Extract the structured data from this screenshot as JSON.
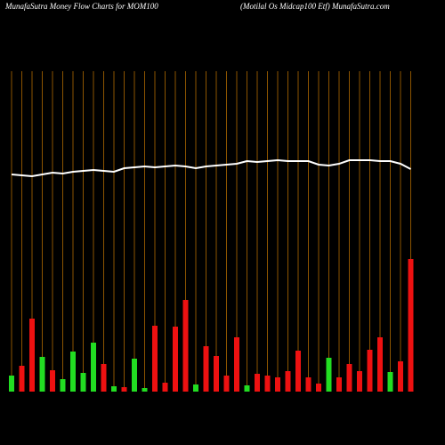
{
  "chart_data": {
    "type": "bar",
    "title": "MunafaSutra  Money Flow  Charts for MOM100",
    "subtitle": "(Motilal Os Midcap100  Etf) MunafaSutra.com",
    "categories": [
      null,
      null,
      null,
      null,
      null,
      null,
      null,
      null,
      null,
      null,
      null,
      null,
      null,
      null,
      null,
      null,
      null,
      null,
      null,
      null,
      null,
      null,
      null,
      null,
      null,
      null,
      null,
      null,
      null,
      null,
      null,
      null,
      null,
      null,
      null,
      null,
      null,
      null,
      null,
      null
    ],
    "bars": {
      "values": [
        18,
        29,
        82,
        39,
        24,
        14,
        45,
        21,
        55,
        31,
        6,
        5,
        37,
        4,
        74,
        10,
        73,
        103,
        8,
        51,
        40,
        18,
        61,
        7,
        20,
        18,
        16,
        23,
        46,
        16,
        9,
        38,
        16,
        31,
        23,
        47,
        61,
        22,
        34,
        149
      ],
      "colors": [
        "#22dd22",
        "#ee1111",
        "#ee1111",
        "#22dd22",
        "#ee1111",
        "#22dd22",
        "#22dd22",
        "#22dd22",
        "#22dd22",
        "#ee1111",
        "#22dd22",
        "#ee1111",
        "#22dd22",
        "#22dd22",
        "#ee1111",
        "#ee1111",
        "#ee1111",
        "#ee1111",
        "#22dd22",
        "#ee1111",
        "#ee1111",
        "#ee1111",
        "#ee1111",
        "#22dd22",
        "#ee1111",
        "#ee1111",
        "#ee1111",
        "#ee1111",
        "#ee1111",
        "#ee1111",
        "#ee1111",
        "#22dd22",
        "#ee1111",
        "#ee1111",
        "#ee1111",
        "#ee1111",
        "#ee1111",
        "#22dd22",
        "#ee1111",
        "#ee1111"
      ]
    },
    "line": {
      "color": "#ffffff",
      "values": [
        244,
        243,
        242,
        244,
        246,
        245,
        247,
        248,
        249,
        248,
        247,
        251,
        252,
        253,
        252,
        253,
        254,
        253,
        251,
        253,
        254,
        255,
        256,
        259,
        258,
        259,
        260,
        259,
        259,
        259,
        255,
        254,
        256,
        260,
        260,
        260,
        259,
        259,
        256,
        250
      ]
    },
    "ylim": [
      0,
      360
    ],
    "grid": true,
    "grid_color": "#b06a00"
  }
}
